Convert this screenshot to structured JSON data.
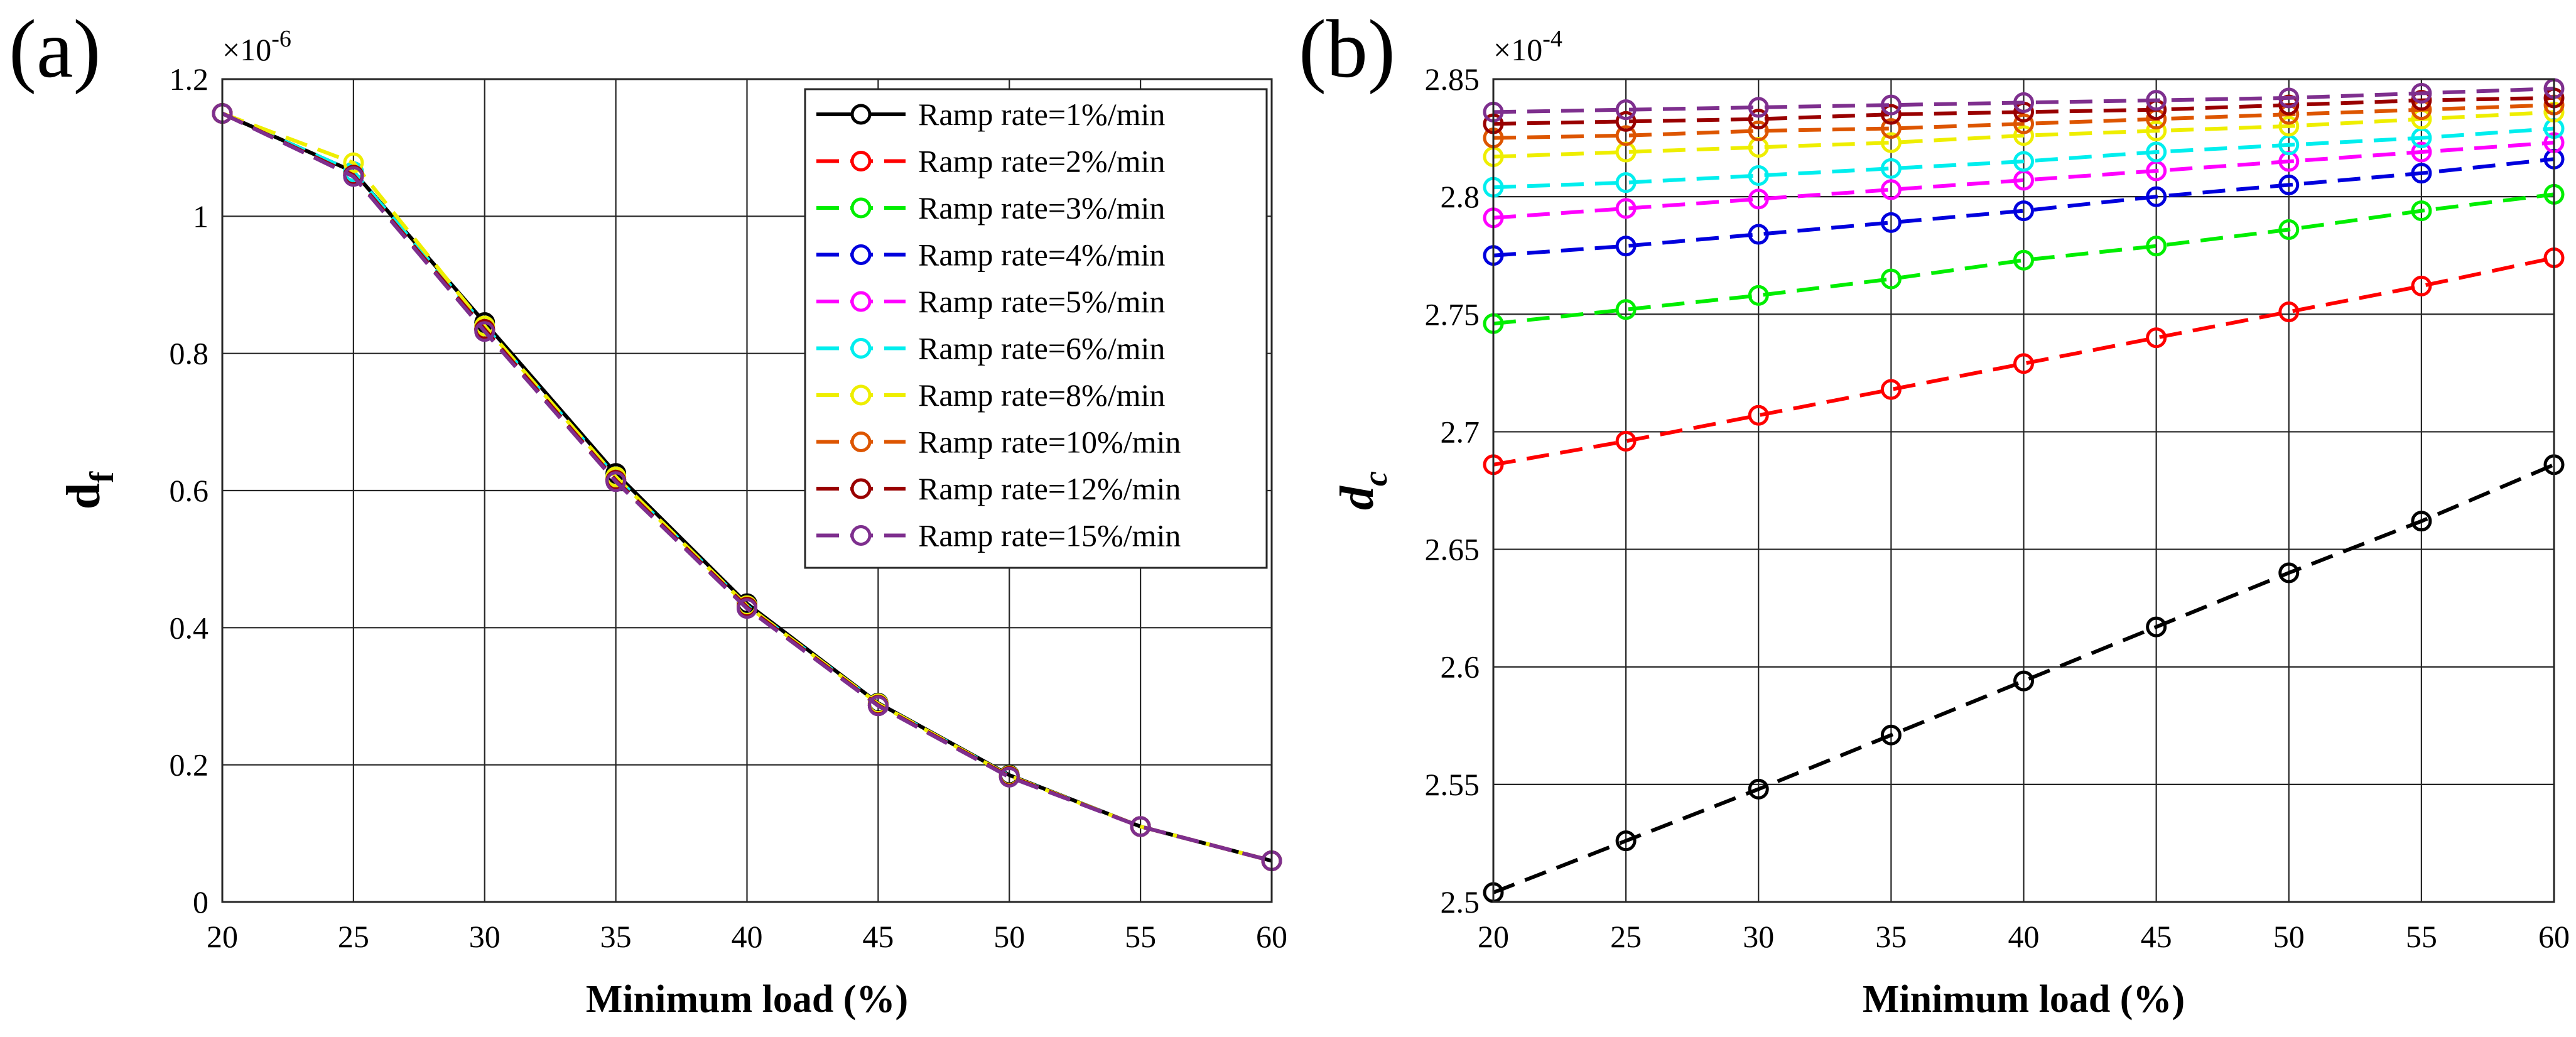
{
  "figure": {
    "panel_a_label": "(a)",
    "panel_b_label": "(b)"
  },
  "chart_data": [
    {
      "type": "line",
      "panel": "(a)",
      "title": "",
      "xlabel": "Minimum load (%)",
      "ylabel_main": "d",
      "ylabel_sub": "f",
      "y_multiplier_base": "×10",
      "y_multiplier_exp": "-6",
      "xlim": [
        20,
        60
      ],
      "ylim": [
        0,
        1.2
      ],
      "xticks": [
        20,
        25,
        30,
        35,
        40,
        45,
        50,
        55,
        60
      ],
      "yticks": [
        0,
        0.2,
        0.4,
        0.6,
        0.8,
        1,
        1.2
      ],
      "ytick_labels": [
        "0",
        "0.2",
        "0.4",
        "0.6",
        "0.8",
        "1",
        "1.2"
      ],
      "grid": true,
      "legend_position": "top-right",
      "x": [
        20,
        25,
        30,
        35,
        40,
        45,
        50,
        55,
        60
      ],
      "series": [
        {
          "name": "Ramp rate=1%/min",
          "color": "#000000",
          "dash": "solid",
          "values": [
            1.15,
            1.065,
            0.845,
            0.625,
            0.435,
            0.29,
            0.185,
            0.11,
            0.06
          ]
        },
        {
          "name": "Ramp rate=2%/min",
          "color": "#ff0000",
          "dash": "dashed",
          "values": [
            1.15,
            1.06,
            0.835,
            0.615,
            0.43,
            0.287,
            0.183,
            0.11,
            0.06
          ]
        },
        {
          "name": "Ramp rate=3%/min",
          "color": "#00ee00",
          "dash": "dashed",
          "values": [
            1.15,
            1.06,
            0.835,
            0.615,
            0.43,
            0.287,
            0.183,
            0.11,
            0.06
          ]
        },
        {
          "name": "Ramp rate=4%/min",
          "color": "#0000dd",
          "dash": "dashed",
          "values": [
            1.15,
            1.06,
            0.835,
            0.615,
            0.43,
            0.287,
            0.183,
            0.11,
            0.06
          ]
        },
        {
          "name": "Ramp rate=5%/min",
          "color": "#ff00ff",
          "dash": "dashed",
          "values": [
            1.15,
            1.06,
            0.835,
            0.615,
            0.43,
            0.287,
            0.183,
            0.11,
            0.06
          ]
        },
        {
          "name": "Ramp rate=6%/min",
          "color": "#00eeee",
          "dash": "dashed",
          "values": [
            1.15,
            1.065,
            0.84,
            0.62,
            0.432,
            0.289,
            0.184,
            0.11,
            0.06
          ]
        },
        {
          "name": "Ramp rate=8%/min",
          "color": "#eeee00",
          "dash": "dashed",
          "values": [
            1.15,
            1.078,
            0.84,
            0.62,
            0.432,
            0.289,
            0.184,
            0.11,
            0.06
          ]
        },
        {
          "name": "Ramp rate=10%/min",
          "color": "#dd5500",
          "dash": "dashed",
          "values": [
            1.15,
            1.06,
            0.835,
            0.615,
            0.43,
            0.287,
            0.183,
            0.11,
            0.06
          ]
        },
        {
          "name": "Ramp rate=12%/min",
          "color": "#990000",
          "dash": "dashed",
          "values": [
            1.15,
            1.06,
            0.835,
            0.615,
            0.43,
            0.287,
            0.183,
            0.11,
            0.06
          ]
        },
        {
          "name": "Ramp rate=15%/min",
          "color": "#7e2f8e",
          "dash": "dashed",
          "values": [
            1.15,
            1.058,
            0.832,
            0.613,
            0.428,
            0.286,
            0.182,
            0.11,
            0.06
          ]
        }
      ]
    },
    {
      "type": "line",
      "panel": "(b)",
      "title": "",
      "xlabel": "Minimum load (%)",
      "ylabel_main": "d",
      "ylabel_sub": "c",
      "y_multiplier_base": "×10",
      "y_multiplier_exp": "-4",
      "xlim": [
        20,
        60
      ],
      "ylim": [
        2.5,
        2.85
      ],
      "xticks": [
        20,
        25,
        30,
        35,
        40,
        45,
        50,
        55,
        60
      ],
      "yticks": [
        2.5,
        2.55,
        2.6,
        2.65,
        2.7,
        2.75,
        2.8,
        2.85
      ],
      "ytick_labels": [
        "2.5",
        "2.55",
        "2.6",
        "2.65",
        "2.7",
        "2.75",
        "2.8",
        "2.85"
      ],
      "grid": true,
      "legend_position": "none",
      "x": [
        20,
        25,
        30,
        35,
        40,
        45,
        50,
        55,
        60
      ],
      "series": [
        {
          "name": "Ramp rate=1%/min",
          "color": "#000000",
          "dash": "dashed",
          "values": [
            2.504,
            2.526,
            2.548,
            2.571,
            2.594,
            2.617,
            2.64,
            2.662,
            2.686
          ]
        },
        {
          "name": "Ramp rate=2%/min",
          "color": "#ff0000",
          "dash": "dashed",
          "values": [
            2.686,
            2.696,
            2.707,
            2.718,
            2.729,
            2.74,
            2.751,
            2.762,
            2.774
          ]
        },
        {
          "name": "Ramp rate=3%/min",
          "color": "#00ee00",
          "dash": "dashed",
          "values": [
            2.746,
            2.752,
            2.758,
            2.765,
            2.773,
            2.779,
            2.786,
            2.794,
            2.801
          ]
        },
        {
          "name": "Ramp rate=4%/min",
          "color": "#0000dd",
          "dash": "dashed",
          "values": [
            2.775,
            2.779,
            2.784,
            2.789,
            2.794,
            2.8,
            2.805,
            2.81,
            2.816
          ]
        },
        {
          "name": "Ramp rate=5%/min",
          "color": "#ff00ff",
          "dash": "dashed",
          "values": [
            2.791,
            2.795,
            2.799,
            2.803,
            2.807,
            2.811,
            2.815,
            2.819,
            2.823
          ]
        },
        {
          "name": "Ramp rate=6%/min",
          "color": "#00eeee",
          "dash": "dashed",
          "values": [
            2.804,
            2.806,
            2.809,
            2.812,
            2.815,
            2.819,
            2.822,
            2.825,
            2.829
          ]
        },
        {
          "name": "Ramp rate=8%/min",
          "color": "#eeee00",
          "dash": "dashed",
          "values": [
            2.817,
            2.819,
            2.821,
            2.823,
            2.826,
            2.828,
            2.83,
            2.833,
            2.836
          ]
        },
        {
          "name": "Ramp rate=10%/min",
          "color": "#dd5500",
          "dash": "dashed",
          "values": [
            2.825,
            2.826,
            2.828,
            2.829,
            2.831,
            2.833,
            2.835,
            2.837,
            2.839
          ]
        },
        {
          "name": "Ramp rate=12%/min",
          "color": "#990000",
          "dash": "dashed",
          "values": [
            2.831,
            2.832,
            2.833,
            2.835,
            2.836,
            2.837,
            2.839,
            2.841,
            2.842
          ]
        },
        {
          "name": "Ramp rate=15%/min",
          "color": "#7e2f8e",
          "dash": "dashed",
          "values": [
            2.836,
            2.837,
            2.838,
            2.839,
            2.84,
            2.841,
            2.842,
            2.844,
            2.846
          ]
        }
      ]
    }
  ]
}
